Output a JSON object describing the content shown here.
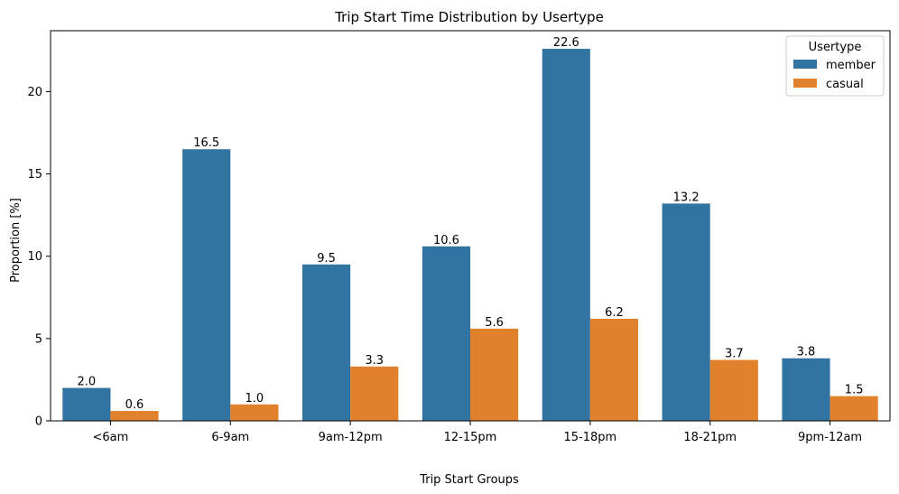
{
  "chart_data": {
    "type": "bar",
    "title": "Trip Start Time Distribution by Usertype",
    "xlabel": "Trip Start Groups",
    "ylabel": "Proportion [%]",
    "categories": [
      "<6am",
      "6-9am",
      "9am-12pm",
      "12-15pm",
      "15-18pm",
      "18-21pm",
      "9pm-12am"
    ],
    "series": [
      {
        "name": "member",
        "color": "#3274a1",
        "values": [
          2.0,
          16.5,
          9.5,
          10.6,
          22.6,
          13.2,
          3.8
        ]
      },
      {
        "name": "casual",
        "color": "#e1812c",
        "values": [
          0.6,
          1.0,
          3.3,
          5.6,
          6.2,
          3.7,
          1.5
        ]
      }
    ],
    "ylim": [
      0,
      23.7
    ],
    "yticks": [
      0,
      5,
      10,
      15,
      20
    ],
    "grid": false,
    "legend": {
      "title": "Usertype",
      "placement": "top-right"
    }
  }
}
